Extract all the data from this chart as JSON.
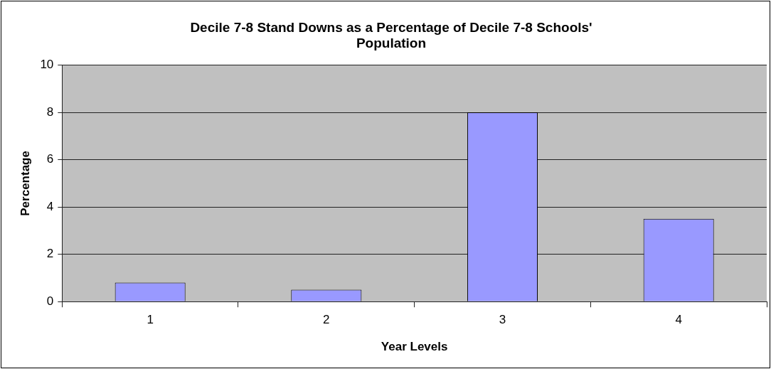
{
  "chart_data": {
    "type": "bar",
    "title": "Decile 7-8 Stand Downs as a Percentage of Decile 7-8 Schools' Population",
    "xlabel": "Year Levels",
    "ylabel": "Percentage",
    "categories": [
      "1",
      "2",
      "3",
      "4"
    ],
    "values": [
      0.8,
      0.5,
      8.0,
      3.5
    ],
    "color": "#9999ff",
    "ylim": [
      0,
      10
    ],
    "yticks": [
      0,
      2,
      4,
      6,
      8,
      10
    ],
    "grid": "y",
    "legend": false
  }
}
